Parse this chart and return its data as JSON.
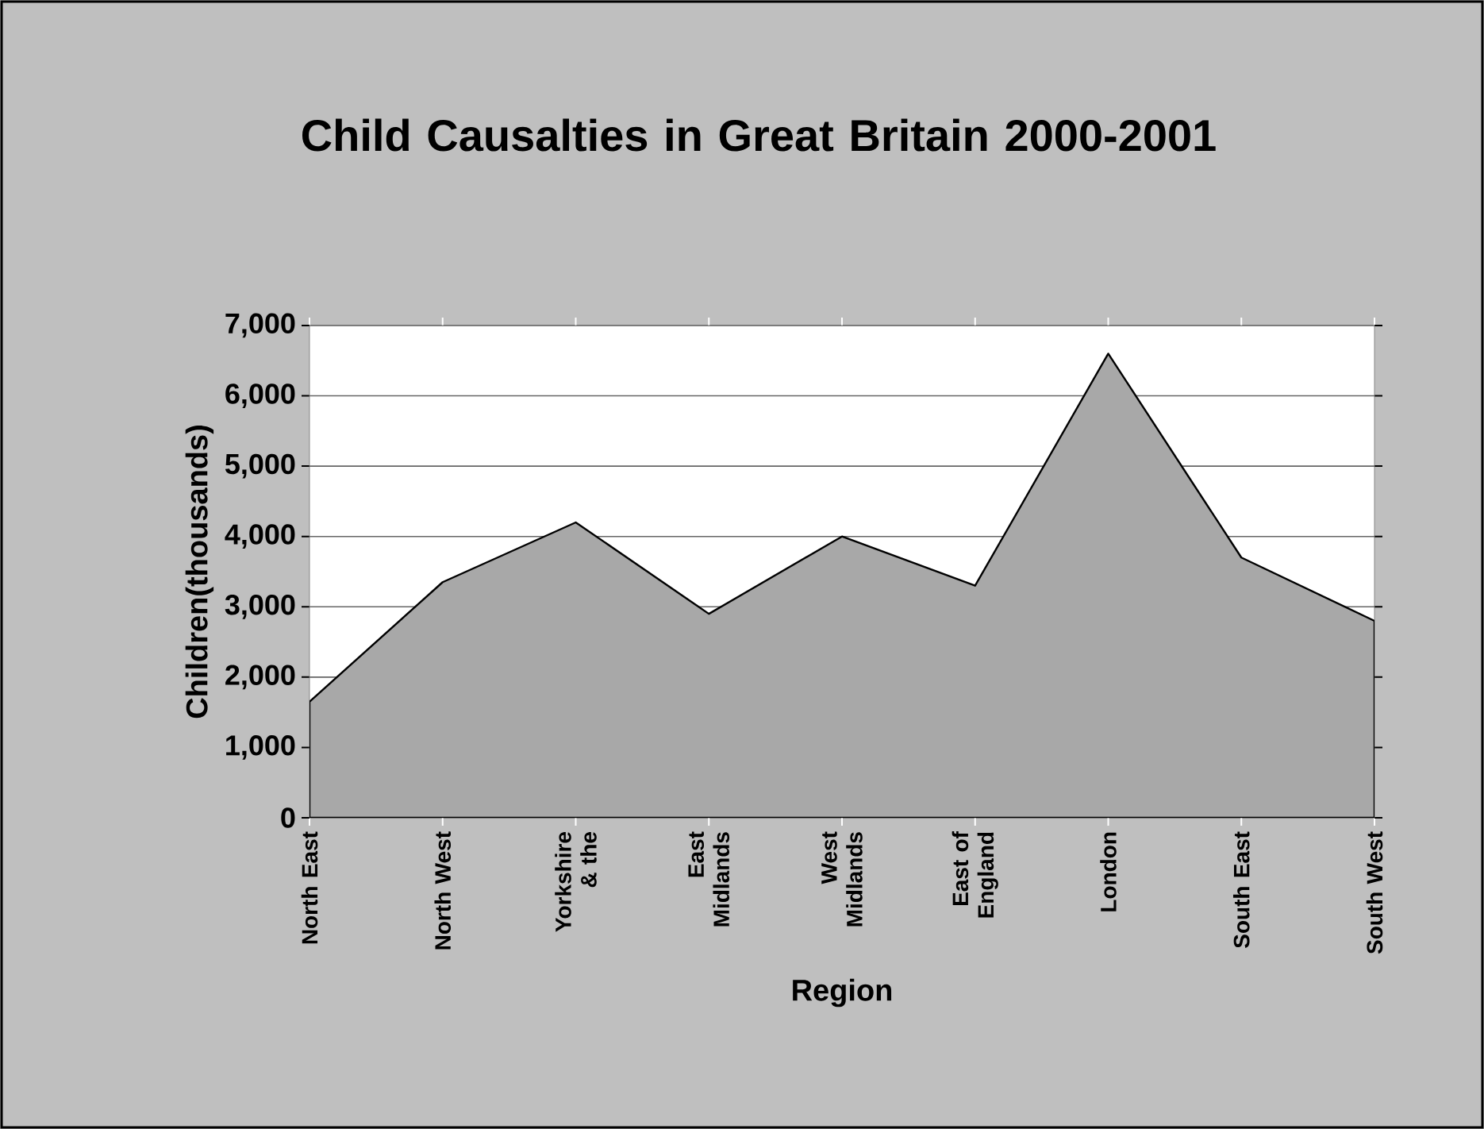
{
  "chart_data": {
    "type": "area",
    "title": "Child Causalties in Great Britain 2000-2001",
    "xlabel": "Region",
    "ylabel": "Children(thousands)",
    "categories": [
      "North East",
      "North West",
      "Yorkshire & the",
      "East Midlands",
      "West Midlands",
      "East of England",
      "London",
      "South East",
      "South West"
    ],
    "values": [
      1650,
      3350,
      4200,
      2900,
      4000,
      3300,
      6600,
      3700,
      2800
    ],
    "color": "#a8a8a8",
    "ylim": [
      0,
      7000
    ],
    "yticks": [
      {
        "value": 0,
        "label": "0"
      },
      {
        "value": 1000,
        "label": "1,000"
      },
      {
        "value": 2000,
        "label": "2,000"
      },
      {
        "value": 3000,
        "label": "3,000"
      },
      {
        "value": 4000,
        "label": "4,000"
      },
      {
        "value": 5000,
        "label": "5,000"
      },
      {
        "value": 6000,
        "label": "6,000"
      },
      {
        "value": 7000,
        "label": "7,000"
      }
    ],
    "grid": "y"
  }
}
